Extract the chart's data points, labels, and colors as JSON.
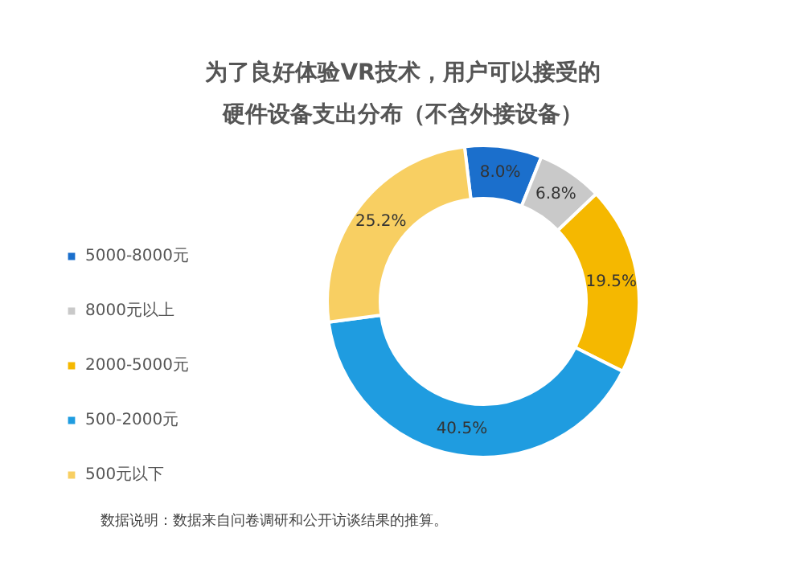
{
  "chart_data": {
    "type": "donut",
    "title": "为了良好体验VR技术，用户可以接受的",
    "subtitle": "硬件设备支出分布（不含外接设备）",
    "categories": [
      "5000-8000元",
      "8000元以上",
      "2000-5000元",
      "500-2000元",
      "500元以下"
    ],
    "values": [
      8.0,
      6.8,
      19.5,
      40.5,
      25.2
    ],
    "colors": [
      "#1b6fcc",
      "#c9c9c9",
      "#f5b800",
      "#1f9ce0",
      "#f8cf62"
    ],
    "value_labels": [
      "8.0%",
      "6.8%",
      "19.5%",
      "40.5%",
      "25.2%"
    ],
    "legend": "left",
    "annotations": [
      "数据说明：数据来自问卷调研和公开访谈结果的推算。"
    ]
  }
}
